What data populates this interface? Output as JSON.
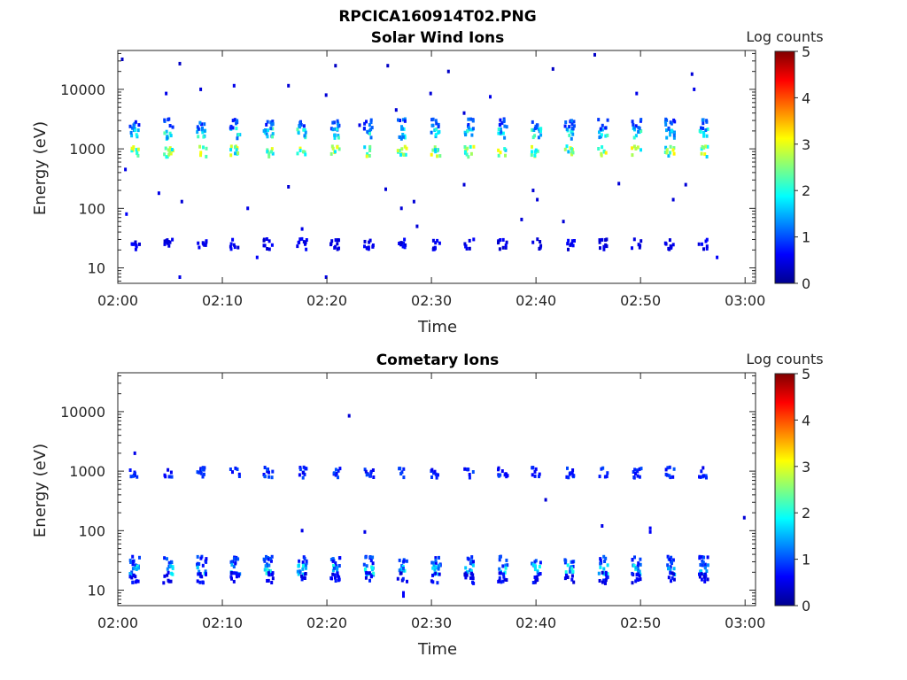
{
  "figure": {
    "title": "RPCICA160914T02.PNG"
  },
  "colors": {
    "axes": "#262626",
    "colormap": "jet",
    "colormap_stops": [
      "#00008f",
      "#0000ff",
      "#0080ff",
      "#00ffff",
      "#80ff80",
      "#ffff00",
      "#ff8000",
      "#ff0000",
      "#800000"
    ]
  },
  "chart_data": [
    {
      "type": "heatmap",
      "title": "Solar Wind Ions",
      "xlabel": "Time",
      "ylabel": "Energy (eV)",
      "x_range": [
        "02:00",
        "03:01"
      ],
      "x_ticks": [
        "02:00",
        "02:10",
        "02:20",
        "02:30",
        "02:40",
        "02:50",
        "03:00"
      ],
      "yscale": "log",
      "ylim": [
        5.5,
        45000
      ],
      "y_ticks": [
        10,
        100,
        1000,
        10000
      ],
      "y_tick_labels": [
        "10",
        "100",
        "1000",
        "10000"
      ],
      "colorbar": {
        "label": "Log counts",
        "range": [
          0,
          5
        ],
        "ticks": [
          "0",
          "1",
          "2",
          "3",
          "4",
          "5"
        ]
      },
      "periodic_bursts": {
        "first_minute": 1.5,
        "period_minutes": 3.2,
        "count": 18,
        "bands": [
          {
            "energy_eV": 900,
            "log_counts": 2.8
          },
          {
            "energy_eV": 1800,
            "log_counts": 2.0
          },
          {
            "energy_eV": 2600,
            "log_counts": 1.2
          },
          {
            "energy_eV": 25,
            "log_counts": 0.6
          }
        ]
      },
      "isolated_points": [
        {
          "t": 0.3,
          "e": 32000,
          "c": 0.3
        },
        {
          "t": 5.8,
          "e": 27000,
          "c": 0.3
        },
        {
          "t": 4.5,
          "e": 8500,
          "c": 0.5
        },
        {
          "t": 7.8,
          "e": 10000,
          "c": 0.4
        },
        {
          "t": 11.0,
          "e": 11500,
          "c": 0.5
        },
        {
          "t": 16.2,
          "e": 11500,
          "c": 0.4
        },
        {
          "t": 19.8,
          "e": 8000,
          "c": 0.4
        },
        {
          "t": 20.7,
          "e": 25000,
          "c": 0.3
        },
        {
          "t": 25.7,
          "e": 25000,
          "c": 0.3
        },
        {
          "t": 29.8,
          "e": 8500,
          "c": 0.4
        },
        {
          "t": 31.5,
          "e": 20000,
          "c": 0.3
        },
        {
          "t": 35.5,
          "e": 7500,
          "c": 0.5
        },
        {
          "t": 41.5,
          "e": 22000,
          "c": 0.3
        },
        {
          "t": 45.5,
          "e": 38000,
          "c": 0.3
        },
        {
          "t": 49.5,
          "e": 8500,
          "c": 0.5
        },
        {
          "t": 54.8,
          "e": 18000,
          "c": 0.4
        },
        {
          "t": 55.0,
          "e": 10000,
          "c": 0.5
        },
        {
          "t": 23.0,
          "e": 2500,
          "c": 0.5
        },
        {
          "t": 26.5,
          "e": 4500,
          "c": 0.4
        },
        {
          "t": 33.0,
          "e": 4000,
          "c": 0.4
        },
        {
          "t": 0.6,
          "e": 450,
          "c": 0.5
        },
        {
          "t": 3.8,
          "e": 180,
          "c": 0.5
        },
        {
          "t": 6.0,
          "e": 130,
          "c": 0.4
        },
        {
          "t": 12.3,
          "e": 100,
          "c": 0.5
        },
        {
          "t": 16.2,
          "e": 230,
          "c": 0.4
        },
        {
          "t": 25.5,
          "e": 210,
          "c": 0.4
        },
        {
          "t": 28.2,
          "e": 130,
          "c": 0.4
        },
        {
          "t": 33.0,
          "e": 250,
          "c": 0.4
        },
        {
          "t": 39.6,
          "e": 200,
          "c": 0.4
        },
        {
          "t": 40.0,
          "e": 140,
          "c": 0.4
        },
        {
          "t": 47.8,
          "e": 260,
          "c": 0.4
        },
        {
          "t": 53.0,
          "e": 140,
          "c": 0.4
        },
        {
          "t": 54.2,
          "e": 250,
          "c": 0.4
        },
        {
          "t": 0.7,
          "e": 80,
          "c": 0.6
        },
        {
          "t": 27.0,
          "e": 100,
          "c": 0.4
        },
        {
          "t": 42.5,
          "e": 60,
          "c": 0.4
        },
        {
          "t": 38.5,
          "e": 65,
          "c": 0.4
        },
        {
          "t": 28.5,
          "e": 50,
          "c": 0.4
        },
        {
          "t": 19.8,
          "e": 7,
          "c": 0.5
        },
        {
          "t": 5.8,
          "e": 7,
          "c": 0.5
        },
        {
          "t": 13.2,
          "e": 15,
          "c": 0.6
        },
        {
          "t": 57.2,
          "e": 15,
          "c": 0.6
        },
        {
          "t": 17.5,
          "e": 45,
          "c": 0.5
        }
      ]
    },
    {
      "type": "heatmap",
      "title": "Cometary Ions",
      "xlabel": "Time",
      "ylabel": "Energy (eV)",
      "x_range": [
        "02:00",
        "03:01"
      ],
      "x_ticks": [
        "02:00",
        "02:10",
        "02:20",
        "02:30",
        "02:40",
        "02:50",
        "03:00"
      ],
      "yscale": "log",
      "ylim": [
        5.5,
        45000
      ],
      "y_ticks": [
        10,
        100,
        1000,
        10000
      ],
      "y_tick_labels": [
        "10",
        "100",
        "1000",
        "10000"
      ],
      "colorbar": {
        "label": "Log counts",
        "range": [
          0,
          5
        ],
        "ticks": [
          "0",
          "1",
          "2",
          "3",
          "4",
          "5"
        ]
      },
      "periodic_bursts": {
        "first_minute": 1.5,
        "period_minutes": 3.2,
        "count": 18,
        "bands": [
          {
            "energy_eV": 950,
            "log_counts": 0.9
          },
          {
            "energy_eV": 30,
            "log_counts": 1.0
          },
          {
            "energy_eV": 22,
            "log_counts": 1.8
          },
          {
            "energy_eV": 16,
            "log_counts": 0.7
          }
        ]
      },
      "isolated_points": [
        {
          "t": 1.5,
          "e": 2000,
          "c": 0.5
        },
        {
          "t": 22.0,
          "e": 8500,
          "c": 0.4
        },
        {
          "t": 17.5,
          "e": 100,
          "c": 0.5
        },
        {
          "t": 23.5,
          "e": 95,
          "c": 0.5
        },
        {
          "t": 40.8,
          "e": 330,
          "c": 0.4
        },
        {
          "t": 46.2,
          "e": 120,
          "c": 0.5
        },
        {
          "t": 50.8,
          "e": 110,
          "c": 0.6
        },
        {
          "t": 50.8,
          "e": 95,
          "c": 0.6
        },
        {
          "t": 59.8,
          "e": 165,
          "c": 0.4
        },
        {
          "t": 27.2,
          "e": 9,
          "c": 0.6
        },
        {
          "t": 27.2,
          "e": 8,
          "c": 0.6
        }
      ]
    }
  ]
}
